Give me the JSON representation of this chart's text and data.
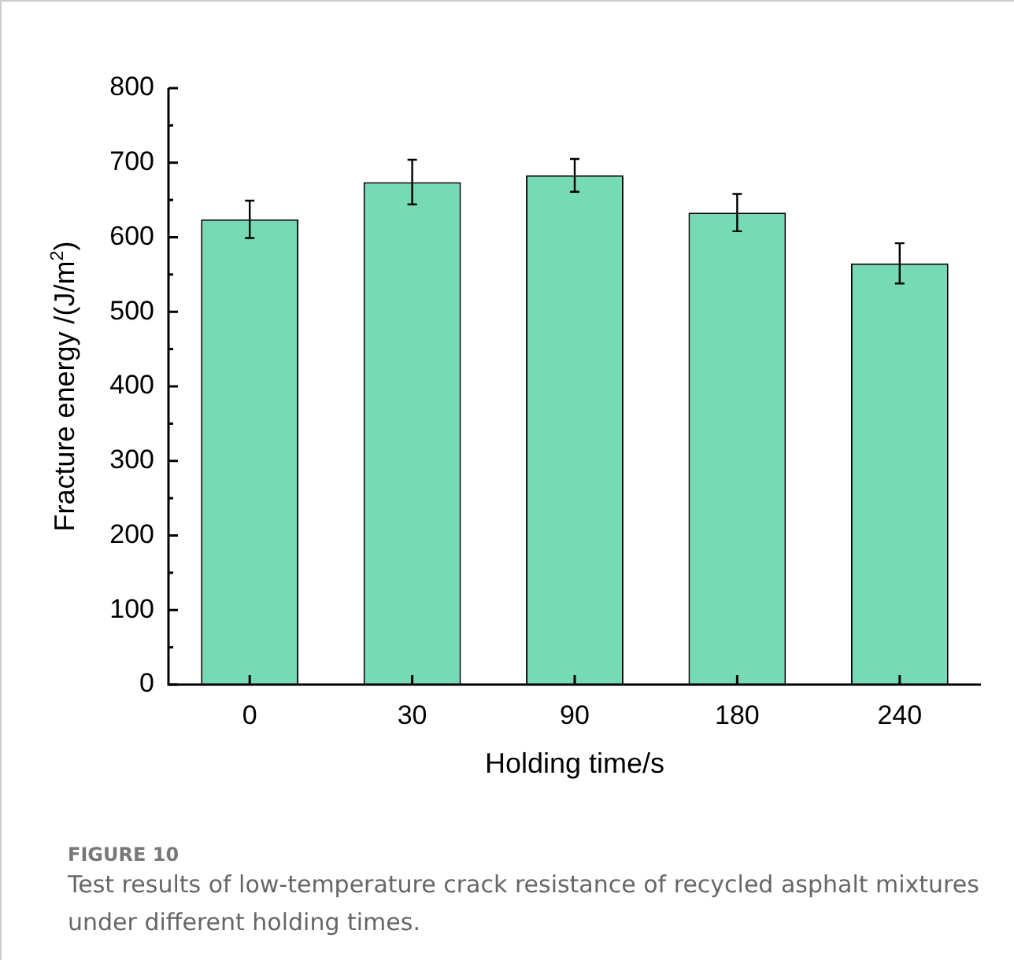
{
  "chart_data": {
    "type": "bar",
    "xlabel": "Holding time/s",
    "ylabel": "Fracture energy /(J/m$^{2}$)",
    "categories": [
      "0",
      "30",
      "90",
      "180",
      "240"
    ],
    "values": [
      624,
      674,
      683,
      633,
      565
    ],
    "errors": [
      25,
      30,
      22,
      25,
      27
    ],
    "color": "#76dab5",
    "ylim": [
      0,
      800
    ],
    "yticks": [
      0,
      {
        "value": 50,
        "label": null
      },
      100,
      {
        "value": 150,
        "label": null
      },
      200,
      {
        "value": 250,
        "label": null
      },
      300,
      {
        "value": 350,
        "label": null
      },
      400,
      {
        "value": 450,
        "label": null
      },
      500,
      {
        "value": 550,
        "label": null
      },
      600,
      {
        "value": 650,
        "label": null
      },
      700,
      {
        "value": 750,
        "label": null
      },
      800
    ],
    "grid": false,
    "legend": false,
    "annotations": [
      "FIGURE 10",
      "Test results of low-temperature crack resistance of recycled asphalt mixtures under different holding times."
    ]
  }
}
